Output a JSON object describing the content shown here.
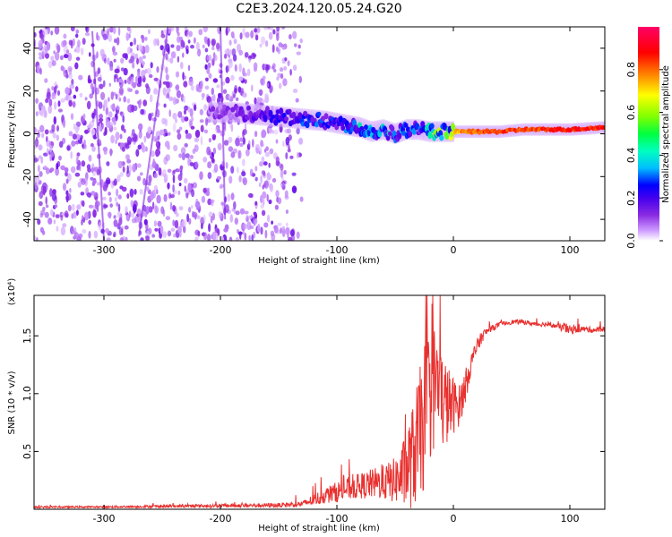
{
  "figure_title": "C2E3.2024.120.05.24.G20",
  "colors": {
    "snr_line": "#e8312f",
    "axes": "#000000",
    "colormap": [
      "#ffffff",
      "#cc99ff",
      "#8a2be2",
      "#5500ee",
      "#0000ff",
      "#00bfff",
      "#00ff80",
      "#7fff00",
      "#ffff00",
      "#ff8000",
      "#ff0000",
      "#ff0066"
    ]
  },
  "chart_data": [
    {
      "type": "heatmap",
      "title": "",
      "xlabel": "Height of straight line (km)",
      "ylabel": "Frequency (Hz)",
      "xlim": [
        -360,
        130
      ],
      "ylim": [
        -50,
        50
      ],
      "x_ticks": [
        -300,
        -200,
        -100,
        0,
        100
      ],
      "y_ticks": [
        -40,
        -20,
        0,
        20,
        40
      ],
      "grid": false,
      "colorbar": {
        "label": "Normalized spectral amplitude",
        "range": [
          0,
          1
        ],
        "ticks": [
          "0.0",
          "0.2",
          "0.4",
          "0.6",
          "0.8"
        ],
        "colormap": "rainbow"
      },
      "noise_region_x": [
        -360,
        -140
      ],
      "ridge": {
        "x": [
          -210,
          -190,
          -170,
          -150,
          -130,
          -110,
          -90,
          -80,
          -70,
          -60,
          -50,
          -40,
          -30,
          -20,
          -10,
          0,
          20,
          40,
          60,
          80,
          100,
          130
        ],
        "y": [
          10,
          10,
          9,
          8,
          7,
          6,
          4,
          3,
          1,
          2,
          0,
          2,
          2,
          1,
          1,
          1,
          1,
          1,
          2,
          2,
          2,
          3
        ],
        "amplitude": [
          0.2,
          0.22,
          0.28,
          0.35,
          0.4,
          0.42,
          0.45,
          0.5,
          0.45,
          0.5,
          0.45,
          0.5,
          0.4,
          0.6,
          0.7,
          0.8,
          0.9,
          0.92,
          0.9,
          0.92,
          0.95,
          0.95
        ]
      }
    },
    {
      "type": "line",
      "title": "",
      "xlabel": "Height of straight line (km)",
      "ylabel": "SNR (10 * v/v)",
      "y_multiplier": "(x10⁴)",
      "xlim": [
        -360,
        130
      ],
      "ylim": [
        0,
        18500
      ],
      "x_ticks": [
        -300,
        -200,
        -100,
        0,
        100
      ],
      "y_tick_labels": [
        "0.5",
        "1.0",
        "1.5"
      ],
      "y_tick_values": [
        5000,
        10000,
        15000
      ],
      "grid": false,
      "series": [
        {
          "x": [
            -360,
            -300,
            -250,
            -200,
            -150,
            -130,
            -120,
            -110,
            -100,
            -90,
            -80,
            -70,
            -60,
            -50,
            -45,
            -40,
            -35,
            -30,
            -25,
            -20,
            -15,
            -10,
            -5,
            0,
            5,
            10,
            15,
            20,
            25,
            30,
            40,
            50,
            60,
            70,
            80,
            90,
            95,
            100,
            110,
            120,
            130
          ],
          "y": [
            180,
            200,
            250,
            300,
            350,
            450,
            800,
            1200,
            1500,
            1800,
            2000,
            2200,
            2300,
            2500,
            2800,
            3500,
            4500,
            6000,
            8000,
            10000,
            11000,
            9500,
            9000,
            9000,
            9000,
            10500,
            12500,
            14000,
            15000,
            15500,
            16000,
            16200,
            16200,
            16000,
            16000,
            15800,
            15700,
            15500,
            15600,
            15500,
            15600
          ],
          "spread": [
            80,
            80,
            120,
            150,
            200,
            250,
            500,
            700,
            900,
            1000,
            1100,
            1300,
            1500,
            2000,
            2500,
            3500,
            4500,
            5500,
            6500,
            6000,
            5500,
            4500,
            3500,
            2500,
            1800,
            1500,
            900,
            700,
            500,
            300,
            200,
            200,
            200,
            200,
            200,
            200,
            500,
            400,
            250,
            250,
            250
          ]
        }
      ]
    }
  ]
}
